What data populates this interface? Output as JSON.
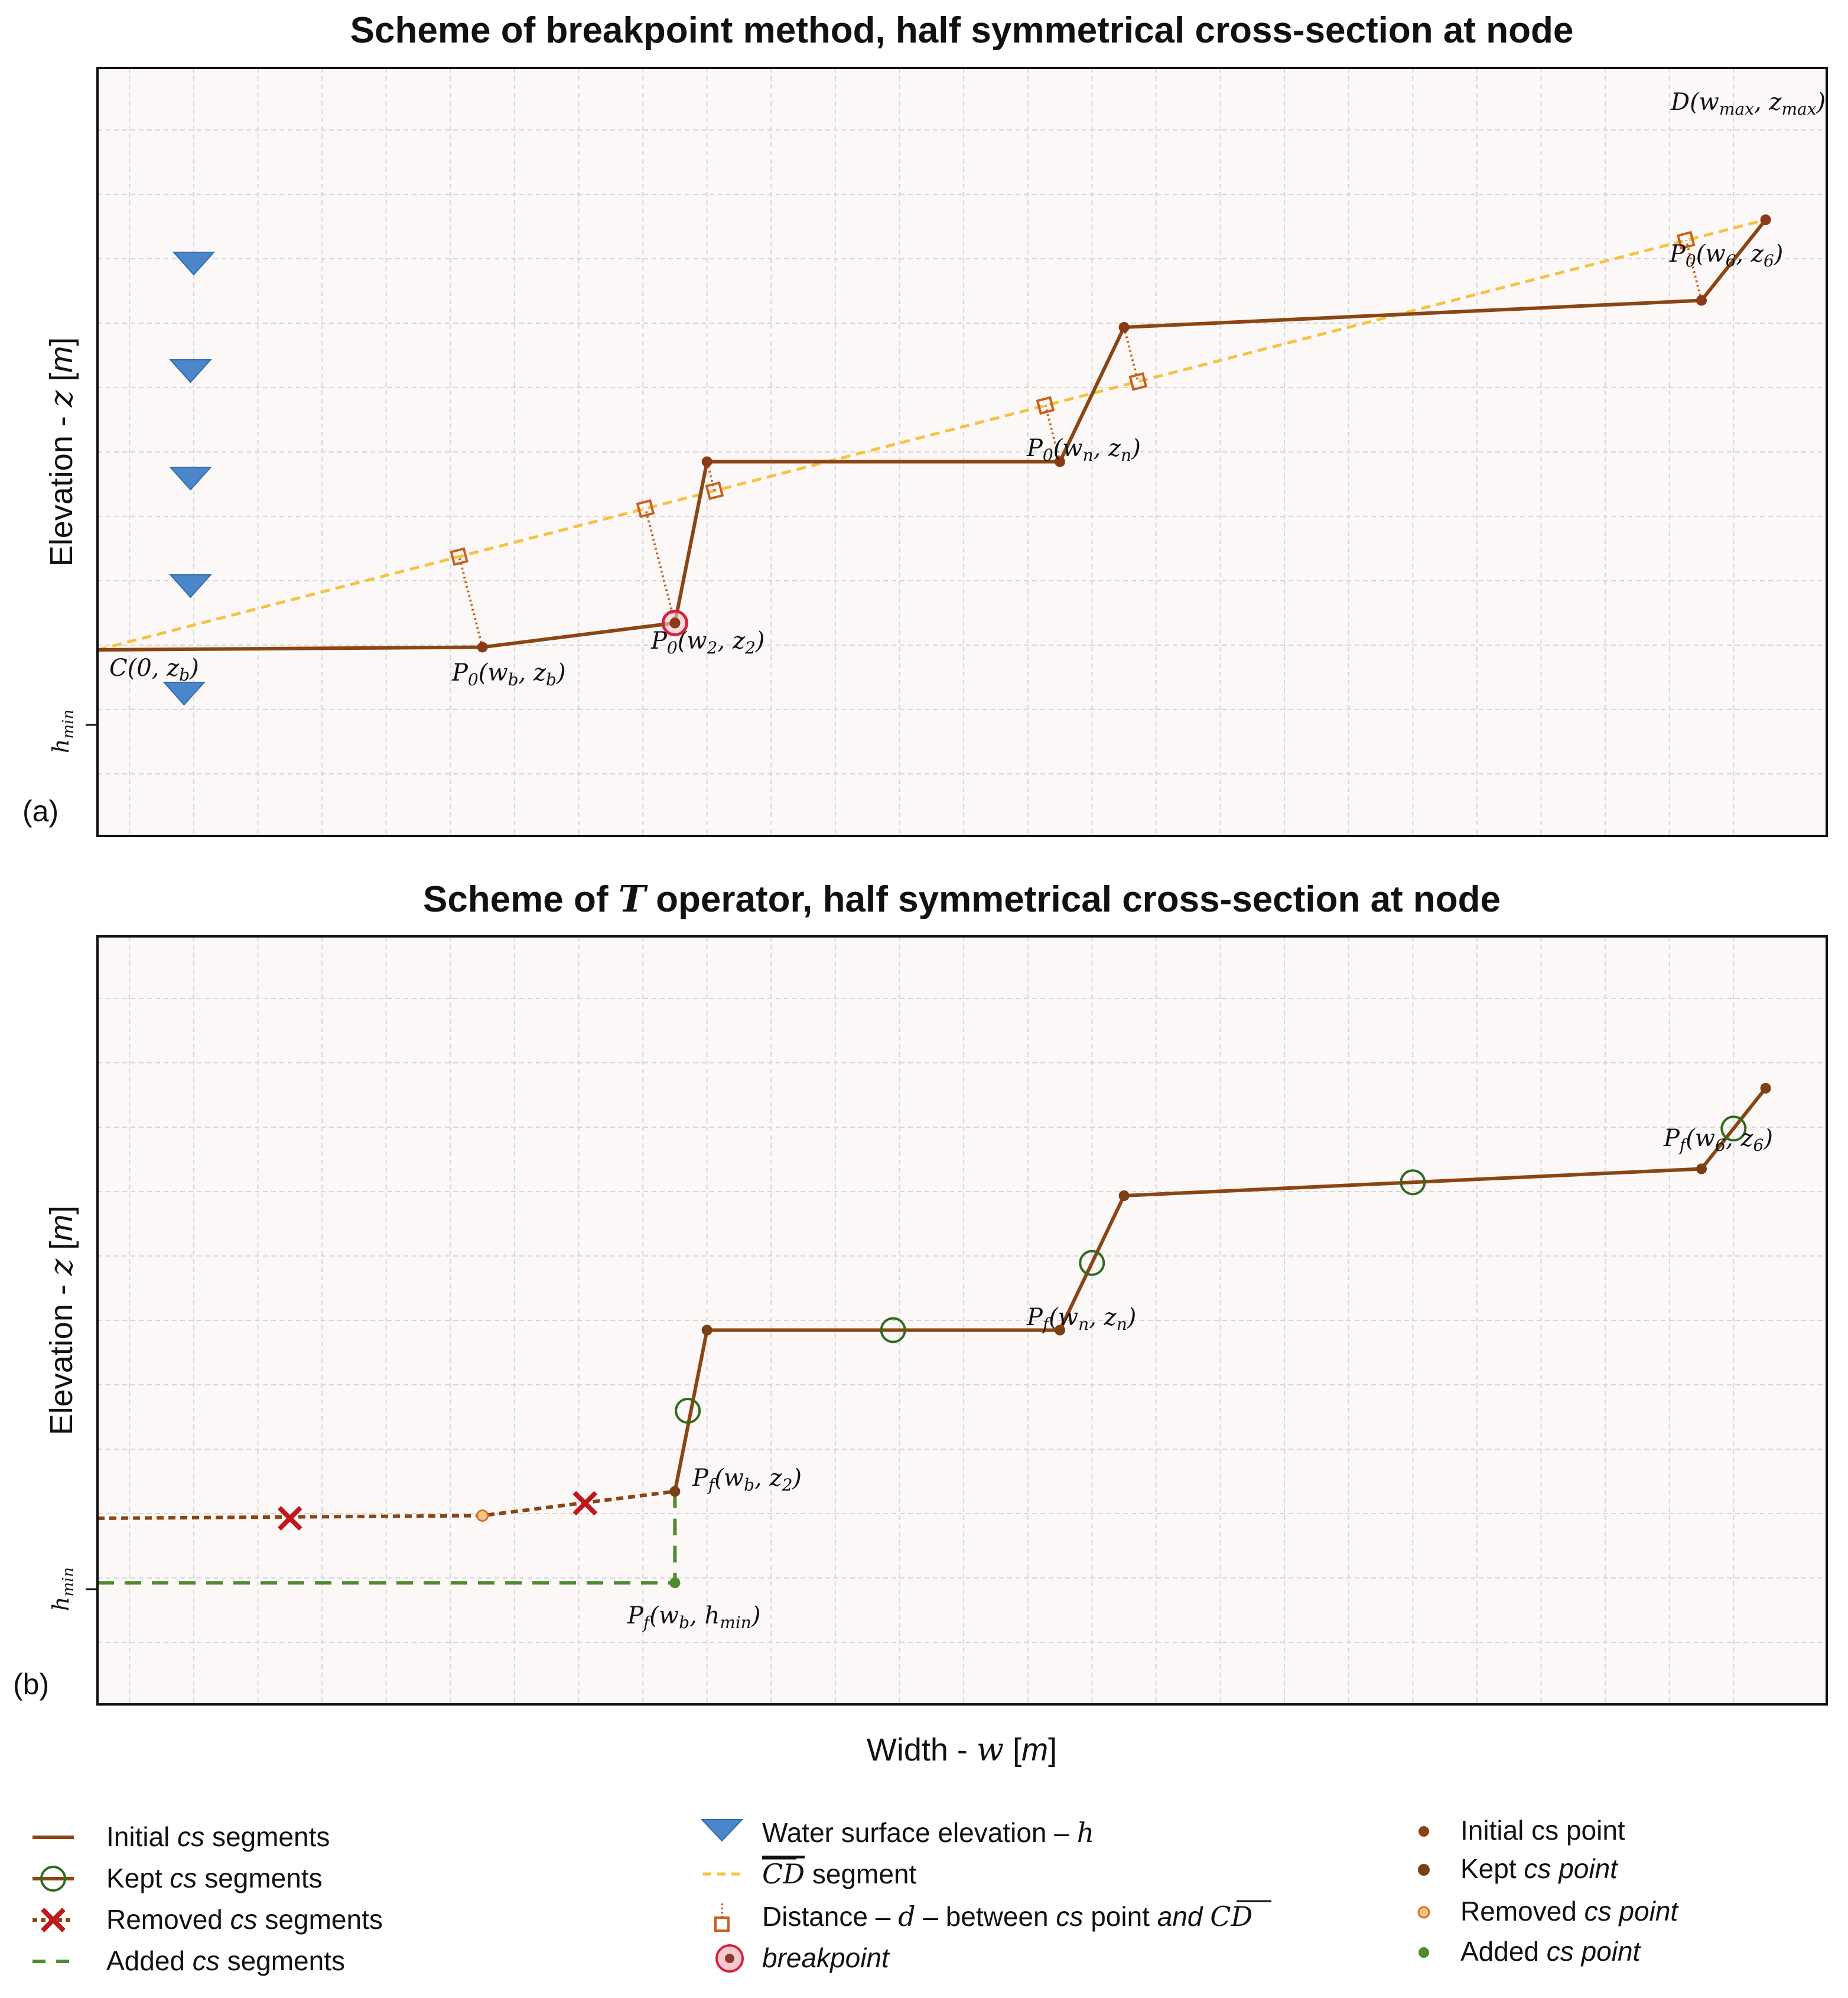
{
  "panel_a": {
    "title": "Scheme of breakpoint method, half symmetrical cross-section at node",
    "ylabel": "Elevation - z [m]",
    "panel_label": "(a)",
    "hmin_tick": "hmin",
    "labels": {
      "C": "C(0, zb)",
      "D": "D(wmax, zmax)",
      "Pb": "P0(wb, zb)",
      "P2": "P0(w2, z2)",
      "Pn": "P0(wn, zn)",
      "P6": "P0(w6, z6)"
    }
  },
  "panel_b": {
    "title_pre": "Scheme of ",
    "title_op": "T",
    "title_post": " operator, half symmetrical cross-section at node",
    "ylabel": "Elevation - z [m]",
    "panel_label": "(b)",
    "hmin_tick": "hmin",
    "labels": {
      "Pb2": "Pf(wb, z2)",
      "Pbh": "Pf(wb, hmin)",
      "Pn": "Pf(wn, zn)",
      "P6": "Pf(w6, z6)"
    }
  },
  "xlabel": "Width - w [m]",
  "legend": {
    "initial_seg": "Initial cs segments",
    "kept_seg": "Kept cs segments",
    "removed_seg": "Removed cs segments",
    "added_seg": "Added cs segments",
    "water": "Water surface elevation – h",
    "cd_segment": "CD segment",
    "distance": "Distance – d – between cs point and CD",
    "breakpoint": "breakpoint",
    "initial_pt": "Initial cs point",
    "kept_pt": "Kept cs point",
    "removed_pt": "Removed cs point",
    "added_pt": "Added cs point"
  },
  "colors": {
    "cs": "#8B4513",
    "cd": "#F5C242",
    "distance": "#C8601E",
    "water": "#4A86C8",
    "kept": "#2E6B1E",
    "removed": "#C0161E",
    "added": "#4F8A2E",
    "breakpoint": "#D2233A",
    "panel_bg": "#FCF8F7"
  },
  "chart_data": [
    {
      "type": "line",
      "title": "Scheme of breakpoint method, half symmetrical cross-section at node",
      "xlabel": "Width - w [m]",
      "ylabel": "Elevation - z [m]",
      "xlim": [
        0,
        26.9
      ],
      "ylim": [
        -3,
        9
      ],
      "grid": true,
      "series": [
        {
          "name": "Initial cs segments",
          "x": [
            0,
            6,
            9,
            9.5,
            15,
            16,
            25,
            26
          ],
          "y": [
            0,
            0.05,
            0.5,
            3.5,
            3.5,
            6,
            6.5,
            8
          ]
        },
        {
          "name": "CD segment",
          "x": [
            0,
            26
          ],
          "y": [
            0,
            8
          ]
        }
      ],
      "water_markers_y": [
        7,
        5,
        3,
        1,
        -1
      ]
    },
    {
      "type": "line",
      "title": "Scheme of T operator, half symmetrical cross-section at node",
      "xlabel": "Width - w [m]",
      "ylabel": "Elevation - z [m]",
      "xlim": [
        0,
        26.9
      ],
      "ylim": [
        -3,
        9
      ],
      "grid": true,
      "series": [
        {
          "name": "Initial cs segments",
          "x": [
            9,
            9.5,
            15,
            16,
            25,
            26
          ],
          "y": [
            0.5,
            3.5,
            3.5,
            6,
            6.5,
            8
          ]
        },
        {
          "name": "Removed cs segments",
          "x": [
            0,
            6,
            9
          ],
          "y": [
            0,
            0.05,
            0.5
          ]
        },
        {
          "name": "Added cs segments",
          "x": [
            0,
            9,
            9
          ],
          "y": [
            -1.2,
            -1.2,
            0.5
          ]
        }
      ],
      "kept_markers": [
        [
          9.2,
          2
        ],
        [
          12.4,
          3.5
        ],
        [
          15.5,
          4.75
        ],
        [
          20.5,
          6.25
        ],
        [
          25.5,
          7.25
        ]
      ],
      "removed_markers": [
        [
          3,
          0
        ],
        [
          7.6,
          0.28
        ]
      ]
    }
  ]
}
